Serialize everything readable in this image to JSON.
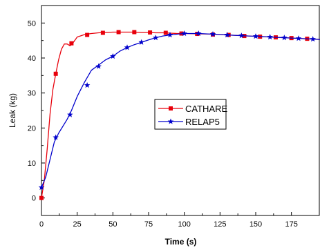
{
  "chart_data": {
    "type": "line",
    "xlabel": "Time (s)",
    "ylabel": "Leak (kg)",
    "xlim": [
      0,
      195
    ],
    "ylim": [
      -5,
      55
    ],
    "xticks": [
      0,
      25,
      50,
      75,
      100,
      125,
      150,
      175
    ],
    "yticks": [
      0,
      10,
      20,
      30,
      40,
      50
    ],
    "xtick_labels": [
      "0",
      "25",
      "50",
      "75",
      "100",
      "125",
      "150",
      "175"
    ],
    "ytick_labels": [
      "0",
      "10",
      "20",
      "30",
      "40",
      "50"
    ],
    "grid": false,
    "legend_position": "center-right",
    "series": [
      {
        "name": "CATHARE",
        "color": "#e8000b",
        "marker": "square",
        "x": [
          0,
          2,
          4,
          6,
          8,
          10,
          12,
          14,
          16,
          18,
          20,
          22,
          25,
          30,
          35,
          40,
          45,
          50,
          55,
          60,
          65,
          70,
          75,
          80,
          85,
          90,
          95,
          100,
          110,
          120,
          130,
          140,
          150,
          160,
          170,
          180,
          190,
          195
        ],
        "y": [
          0,
          5,
          14,
          24,
          31,
          35.5,
          39.5,
          42.5,
          44,
          44,
          43.5,
          44.3,
          46,
          46.7,
          47,
          47.2,
          47.3,
          47.4,
          47.4,
          47.4,
          47.4,
          47.3,
          47.3,
          47.2,
          47.2,
          47.1,
          47,
          47,
          46.9,
          46.8,
          46.6,
          46.4,
          46.2,
          46,
          45.8,
          45.6,
          45.4,
          45.3
        ],
        "marker_x": [
          0,
          10,
          21,
          32,
          43,
          54,
          65,
          76,
          87,
          98,
          109,
          120,
          131,
          142,
          153,
          164,
          175,
          186
        ],
        "marker_y": [
          0,
          35.5,
          44.2,
          46.6,
          47.2,
          47.4,
          47.4,
          47.3,
          47.2,
          47,
          46.9,
          46.7,
          46.6,
          46.3,
          46.1,
          45.9,
          45.7,
          45.5
        ]
      },
      {
        "name": "RELAP5",
        "color": "#0000cc",
        "marker": "star",
        "x": [
          0,
          3,
          6,
          9,
          12,
          15,
          18,
          21,
          25,
          30,
          35,
          40,
          45,
          50,
          55,
          60,
          65,
          70,
          75,
          80,
          85,
          90,
          95,
          100,
          105,
          110,
          115,
          120,
          130,
          140,
          150,
          160,
          170,
          180,
          190,
          195
        ],
        "y": [
          3,
          6,
          11,
          16,
          18.5,
          20.5,
          22.5,
          25,
          29,
          33,
          36.5,
          38,
          39.5,
          40.5,
          42,
          43,
          43.8,
          44.5,
          45.2,
          45.8,
          46.3,
          46.6,
          46.8,
          47,
          47,
          47,
          46.9,
          46.8,
          46.6,
          46.4,
          46.2,
          46,
          45.8,
          45.6,
          45.4,
          45.3
        ],
        "marker_x": [
          0,
          10,
          20,
          32,
          40,
          50,
          60,
          70,
          80,
          90,
          100,
          110,
          120,
          130,
          140,
          150,
          160,
          170,
          180,
          190
        ],
        "marker_y": [
          3,
          17.3,
          23.8,
          32.2,
          37.6,
          40.5,
          43,
          44.5,
          45.8,
          46.6,
          47,
          47,
          46.8,
          46.6,
          46.4,
          46.2,
          46,
          45.8,
          45.6,
          45.4
        ]
      }
    ]
  }
}
